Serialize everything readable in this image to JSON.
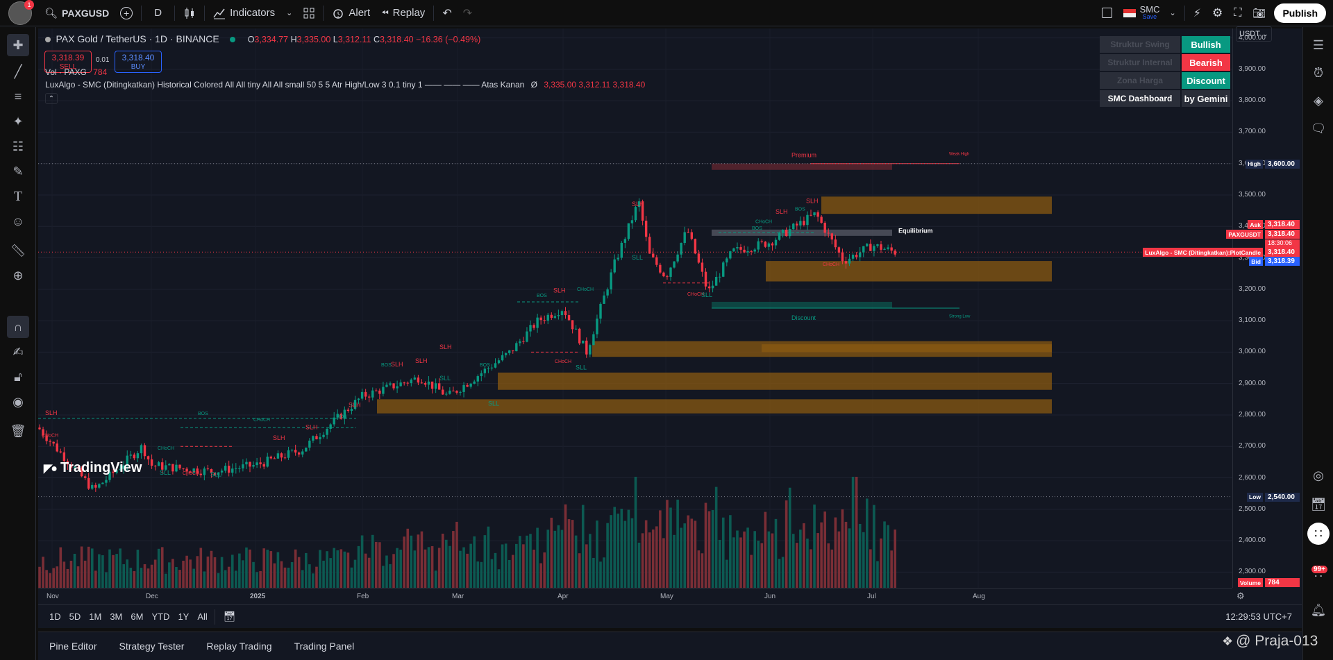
{
  "topbar": {
    "notification_count": "1",
    "symbol": "PAXGUSD",
    "interval": "D",
    "indicators": "Indicators",
    "alert": "Alert",
    "replay": "Replay",
    "layout_name": "SMC",
    "layout_save": "Save",
    "publish": "Publish"
  },
  "legend": {
    "title": "PAX Gold / TetherUS · 1D · BINANCE",
    "open_label": "O",
    "open": "3,334.77",
    "high_label": "H",
    "high": "3,335.00",
    "low_label": "L",
    "low": "3,312.11",
    "close_label": "C",
    "close": "3,318.40",
    "change": "−16.36 (−0.49%)",
    "sell_price": "3,318.39",
    "sell_label": "SELL",
    "spread": "0.01",
    "buy_price": "3,318.40",
    "buy_label": "BUY",
    "vol_label": "Vol · PAXG",
    "vol_value": "784",
    "indicator_text": "LuxAlgo - SMC (Ditingkatkan) Historical Colored All All tiny All All small 50 5 5 Atr High/Low 3 0.1 tiny 1 —— —— —— Atas Kanan",
    "indicator_symbol": "Ø",
    "indicator_values": "3,335.00  3,312.11  3,318.40"
  },
  "dashboard": {
    "rows": [
      {
        "left": "Struktur Swing",
        "right": "Bullish",
        "color": "#089981"
      },
      {
        "left": "Struktur Internal",
        "right": "Bearish",
        "color": "#f23645"
      },
      {
        "left": "Zona Harga",
        "right": "Discount",
        "color": "#089981"
      },
      {
        "left": "SMC Dashboard",
        "right": "by Gemini",
        "color": "#2a2e39"
      }
    ]
  },
  "currency": "USDT",
  "price_axis": [
    "4,000.00",
    "3,900.00",
    "3,800.00",
    "3,700.00",
    "3,600.00",
    "3,500.00",
    "3,400.00",
    "3,300.00",
    "3,200.00",
    "3,100.00",
    "3,000.00",
    "2,900.00",
    "2,800.00",
    "2,700.00",
    "2,600.00",
    "2,500.00",
    "2,400.00",
    "2,300.00"
  ],
  "price_tags": {
    "high_label": "High",
    "high_value": "3,600.00",
    "low_label": "Low",
    "low_value": "2,540.00",
    "ask_label": "Ask",
    "ask_value": "3,318.40",
    "symbol_label": "PAXGUSDT",
    "symbol_value": "3,318.40",
    "countdown": "18:30:06",
    "plot_label": "LuxAlgo - SMC (Ditingkatkan):PlotCandle",
    "plot_value": "3,318.40",
    "bid_label": "Bid",
    "bid_value": "3,318.39",
    "volume_label": "Volume",
    "volume_value": "784"
  },
  "time_axis": [
    "Nov",
    "Dec",
    "2025",
    "Feb",
    "Mar",
    "Apr",
    "May",
    "Jun",
    "Jul",
    "Aug"
  ],
  "chart_labels": {
    "premium": "Premium",
    "discount": "Discount",
    "equilibrium": "Equilibrium",
    "weak_high": "Weak High",
    "strong_low": "Strong Low",
    "watermark": "TradingView",
    "slh": "SLH",
    "sll": "SLL",
    "bos": "BOS",
    "choch": "CHoCH"
  },
  "timeframes": [
    "1D",
    "5D",
    "1M",
    "3M",
    "6M",
    "YTD",
    "1Y",
    "All"
  ],
  "clock": "12:29:53 UTC+7",
  "panel_tabs": [
    "Pine Editor",
    "Strategy Tester",
    "Replay Trading",
    "Trading Panel"
  ],
  "rightbar_badge": "99+",
  "overlay_watermark": "@ Praja-013",
  "colors": {
    "bull": "#089981",
    "bear": "#f23645",
    "orderblock": "#8a5a12",
    "bg": "#131722"
  },
  "chart_data": {
    "type": "candlestick",
    "symbol": "PAXGUSD",
    "interval": "1D",
    "ylim": [
      2250,
      4030
    ],
    "last": {
      "open": 3334.77,
      "high": 3335.0,
      "low": 3312.11,
      "close": 3318.4,
      "volume": 784
    },
    "anchors": [
      {
        "x": "Nov",
        "y": 2760
      },
      {
        "x": "mid-Nov",
        "y": 2560
      },
      {
        "x": "late-Nov",
        "y": 2700
      },
      {
        "x": "Dec",
        "y": 2640
      },
      {
        "x": "late-Dec",
        "y": 2620
      },
      {
        "x": "2025",
        "y": 2640
      },
      {
        "x": "mid-Jan",
        "y": 2690
      },
      {
        "x": "Feb",
        "y": 2860
      },
      {
        "x": "mid-Feb",
        "y": 2920
      },
      {
        "x": "late-Feb",
        "y": 2860
      },
      {
        "x": "Mar",
        "y": 2880
      },
      {
        "x": "mid-Mar",
        "y": 3000
      },
      {
        "x": "late-Mar",
        "y": 3100
      },
      {
        "x": "Apr",
        "y": 3140
      },
      {
        "x": "early-Apr",
        "y": 3000
      },
      {
        "x": "mid-Apr",
        "y": 3280
      },
      {
        "x": "22-Apr",
        "y": 3480
      },
      {
        "x": "late-Apr",
        "y": 3310
      },
      {
        "x": "May",
        "y": 3240
      },
      {
        "x": "early-May",
        "y": 3390
      },
      {
        "x": "mid-May",
        "y": 3190
      },
      {
        "x": "late-May",
        "y": 3320
      },
      {
        "x": "Jun",
        "y": 3350
      },
      {
        "x": "mid-Jun",
        "y": 3440
      },
      {
        "x": "late-Jun",
        "y": 3290
      },
      {
        "x": "Jul",
        "y": 3340
      },
      {
        "x": "early-Jul",
        "y": 3318
      }
    ]
  }
}
